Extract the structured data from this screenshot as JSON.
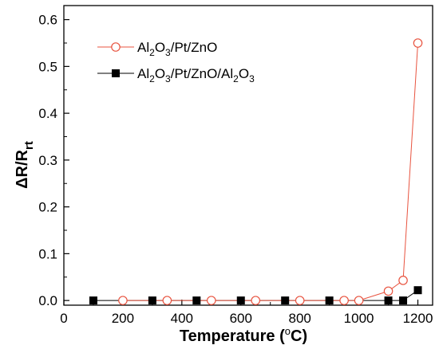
{
  "chart_data": {
    "type": "line",
    "xlabel": {
      "text": "Temperature (",
      "superscript": "o",
      "suffix": "C)"
    },
    "ylabel": {
      "main": "ΔR/R",
      "subscript": "rt"
    },
    "xlim": [
      0,
      1250
    ],
    "ylim": [
      -0.01,
      0.63
    ],
    "xticks": [
      0,
      200,
      400,
      600,
      800,
      1000,
      1200
    ],
    "yticks": [
      0.0,
      0.1,
      0.2,
      0.3,
      0.4,
      0.5,
      0.6
    ],
    "ytick_labels": [
      "0.0",
      "0.1",
      "0.2",
      "0.3",
      "0.4",
      "0.5",
      "0.6"
    ],
    "grid": false,
    "legend_position": "top-left",
    "series": [
      {
        "name": "Al2O3/Pt/ZnO",
        "legend_parts": [
          {
            "t": "Al",
            "sub": false
          },
          {
            "t": "2",
            "sub": true
          },
          {
            "t": "O",
            "sub": false
          },
          {
            "t": "3",
            "sub": true
          },
          {
            "t": "/Pt/ZnO",
            "sub": false
          }
        ],
        "marker": "open-circle",
        "color": "#e8533f",
        "x": [
          200,
          350,
          500,
          650,
          800,
          950,
          1000,
          1100,
          1150,
          1200
        ],
        "y": [
          0.0,
          0.0,
          0.0,
          0.0,
          0.0,
          0.0,
          0.0,
          0.02,
          0.043,
          0.55
        ]
      },
      {
        "name": "Al2O3/Pt/ZnO/Al2O3",
        "legend_parts": [
          {
            "t": "Al",
            "sub": false
          },
          {
            "t": "2",
            "sub": true
          },
          {
            "t": "O",
            "sub": false
          },
          {
            "t": "3",
            "sub": true
          },
          {
            "t": "/Pt/ZnO/Al",
            "sub": false
          },
          {
            "t": "2",
            "sub": true
          },
          {
            "t": "O",
            "sub": false
          },
          {
            "t": "3",
            "sub": true
          }
        ],
        "marker": "filled-square",
        "color": "#000000",
        "x": [
          100,
          300,
          450,
          600,
          750,
          900,
          1100,
          1150,
          1200
        ],
        "y": [
          0.0,
          0.0,
          0.0,
          0.0,
          0.0,
          0.0,
          0.0,
          0.0,
          0.022
        ]
      }
    ]
  }
}
